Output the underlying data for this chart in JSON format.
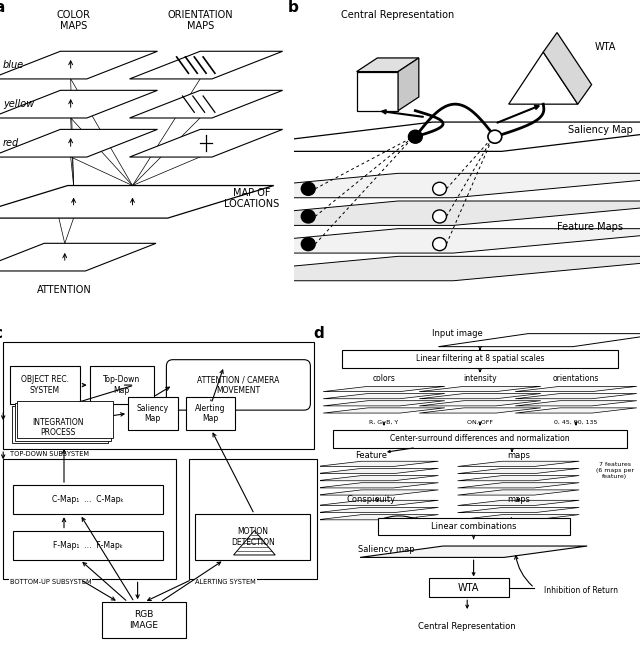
{
  "bg_color": "#ffffff",
  "panel_label_fontsize": 11,
  "panel_a": {
    "color_maps_title": "COLOR\nMAPS",
    "orient_maps_title": "ORIENTATION\nMAPS",
    "layer_labels": [
      "blue",
      "yellow",
      "red"
    ],
    "map_of_locations": "MAP OF\nLOCATIONS",
    "attention": "ATTENTION"
  },
  "panel_b": {
    "central_rep": "Central Representation",
    "wta": "WTA",
    "saliency_map": "Saliency Map",
    "feature_maps": "Feature Maps"
  },
  "panel_c": {
    "obj_rec": "OBJECT REC.\nSYSTEM",
    "topdown_map": "Top-Down\nMap",
    "attn_camera": "ATTENTION / CAMERA\nMOVEMENT",
    "integration": "INTEGRATION\nPROCESS",
    "saliency": "Saliency\nMap",
    "alerting": "Alerting\nMap",
    "motion": "MOTION\nDETECTION",
    "rgb": "RGB\nIMAGE",
    "topdown_sub": "TOP-DOWN SUBSYSTEM",
    "bottomup_sub": "BOTTOM-UP SUBSYSTEM",
    "alerting_sys": "ALERTING SYSTEM",
    "cmap_label": "C-Map₁  …  C-Mapₖ",
    "fmap_label": "F-Map₁  …  F-Mapₖ"
  },
  "panel_d": {
    "input_image": "Input image",
    "linear_filter": "Linear filtering at 8 spatial scales",
    "center_surround": "Center-surround differences and normalization",
    "linear_comb": "Linear combinations",
    "wta": "WTA",
    "colors": "colors",
    "intensity": "intensity",
    "orientations": "orientations",
    "rgby": "R, G, B, Y",
    "onoff": "ON, OFF",
    "angles": "0, 45, 90, 135",
    "feature": "Feature",
    "maps1": "maps",
    "conspicuity": "Conspicuity",
    "maps2": "maps",
    "saliency_map": "Saliency map",
    "inhibition": "Inhibition of Return",
    "central_rep": "Central Representation",
    "seven_feat": "7 features\n(6 maps per\nfeature)"
  }
}
